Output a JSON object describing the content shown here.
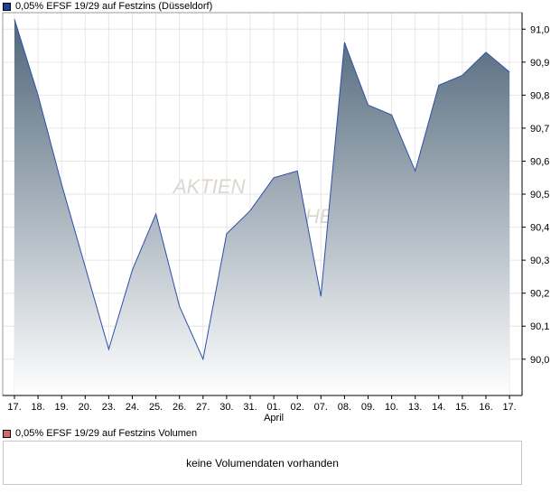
{
  "legend": {
    "price_label": "0,05% EFSF 19/29 auf Festzins (Düsseldorf)",
    "price_color": "#1f3d99",
    "volume_label": "0,05% EFSF 19/29 auf Festzins Volumen",
    "volume_color": "#d46a6a"
  },
  "watermark": {
    "line1": "AKTIEN",
    "line2": "CHECK"
  },
  "volume_message": "keine Volumendaten vorhanden",
  "chart_data": {
    "type": "area",
    "title": "",
    "xlabel": "",
    "ylabel": "",
    "x": [
      "17.",
      "18.",
      "19.",
      "20.",
      "23.",
      "24.",
      "25.",
      "26.",
      "27.",
      "30.",
      "31.",
      "01.",
      "02.",
      "07.",
      "08.",
      "09.",
      "10.",
      "13.",
      "14.",
      "15.",
      "16.",
      "17."
    ],
    "month_marker": {
      "index": 11,
      "label": "April"
    },
    "series": [
      {
        "values": [
          91.03,
          90.8,
          90.53,
          90.28,
          90.03,
          90.27,
          90.44,
          90.16,
          90.0,
          90.38,
          90.45,
          90.55,
          90.57,
          90.19,
          90.96,
          90.77,
          90.74,
          90.57,
          90.83,
          90.86,
          90.93,
          90.87
        ],
        "line_color": "#2d4fa8",
        "fill_top": "#50667a",
        "fill_bottom": "#ffffff"
      }
    ],
    "y_ticks": [
      "91,0",
      "90,9",
      "90,8",
      "90,7",
      "90,6",
      "90,5",
      "90,4",
      "90,3",
      "90,2",
      "90,1",
      "90,0"
    ],
    "ylim": [
      89.89,
      91.05
    ],
    "grid": true,
    "y_axis_position": "right"
  }
}
